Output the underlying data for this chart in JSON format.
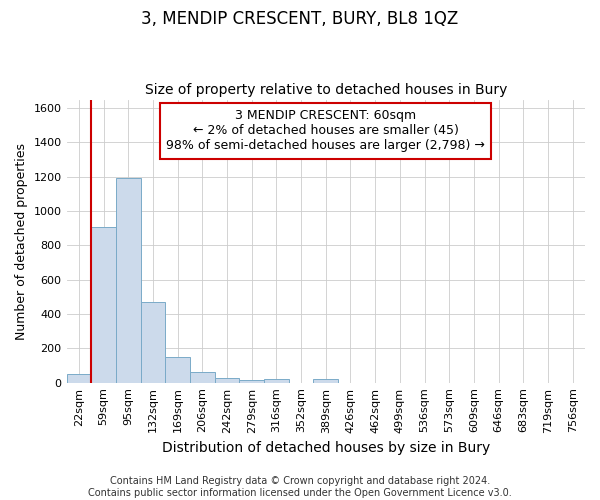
{
  "title": "3, MENDIP CRESCENT, BURY, BL8 1QZ",
  "subtitle": "Size of property relative to detached houses in Bury",
  "xlabel": "Distribution of detached houses by size in Bury",
  "ylabel": "Number of detached properties",
  "footer_line1": "Contains HM Land Registry data © Crown copyright and database right 2024.",
  "footer_line2": "Contains public sector information licensed under the Open Government Licence v3.0.",
  "categories": [
    "22sqm",
    "59sqm",
    "95sqm",
    "132sqm",
    "169sqm",
    "206sqm",
    "242sqm",
    "279sqm",
    "316sqm",
    "352sqm",
    "389sqm",
    "426sqm",
    "462sqm",
    "499sqm",
    "536sqm",
    "573sqm",
    "609sqm",
    "646sqm",
    "683sqm",
    "719sqm",
    "756sqm"
  ],
  "bar_heights": [
    50,
    910,
    1190,
    470,
    150,
    60,
    30,
    15,
    20,
    0,
    20,
    0,
    0,
    0,
    0,
    0,
    0,
    0,
    0,
    0,
    0
  ],
  "bar_color": "#ccdaeb",
  "bar_edge_color": "#7aaac8",
  "grid_color": "#cccccc",
  "background_color": "#ffffff",
  "annotation_box_text": "3 MENDIP CRESCENT: 60sqm\n← 2% of detached houses are smaller (45)\n98% of semi-detached houses are larger (2,798) →",
  "annotation_box_color": "#cc0000",
  "vline_color": "#cc0000",
  "vline_x": 0.5,
  "ylim": [
    0,
    1650
  ],
  "yticks": [
    0,
    200,
    400,
    600,
    800,
    1000,
    1200,
    1400,
    1600
  ],
  "title_fontsize": 12,
  "subtitle_fontsize": 10,
  "xlabel_fontsize": 10,
  "ylabel_fontsize": 9,
  "tick_fontsize": 8,
  "footer_fontsize": 7,
  "annot_fontsize": 9
}
